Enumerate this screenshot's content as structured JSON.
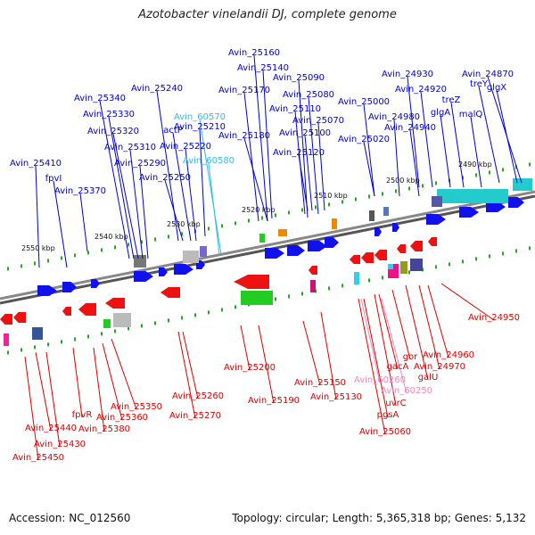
{
  "title": "Azotobacter vinelandii DJ, complete genome",
  "footer": {
    "accession": "Accession: NC_012560",
    "summary": "Topology: circular; Length: 5,365,318 bp; Genes: 5,132"
  },
  "colors": {
    "plus_label": "#0000cc",
    "minus_label": "#dd0000",
    "rna_plus_label": "#33bbee",
    "rna_minus_label": "#ee88bb",
    "backbone": "#888888",
    "tick": "#22aa22"
  },
  "scale_labels": [
    "2550 kbp",
    "2540 kbp",
    "2530 kbp",
    "2520 kbp",
    "2510 kbp",
    "2500 kbp",
    "2490 kbp"
  ],
  "plus_labels": [
    "Avin_25410",
    "fpvI",
    "Avin_25370",
    "Avin_25340",
    "Avin_25330",
    "Avin_25320",
    "Avin_25310",
    "Avin_25290",
    "Avin_25240",
    "actP",
    "Avin_25250",
    "Avin_25220",
    "Avin_25210",
    "Avin_25160",
    "Avin_25140",
    "Avin_25170",
    "Avin_25180",
    "Avin_25090",
    "Avin_25080",
    "Avin_25110",
    "Avin_25070",
    "Avin_25100",
    "Avin_25120",
    "Avin_25000",
    "Avin_25020",
    "Avin_24980",
    "Avin_24940",
    "Avin_24930",
    "Avin_24920",
    "treZ",
    "glgA",
    "malQ",
    "Avin_24870",
    "treY",
    "glgX"
  ],
  "rna_plus_labels": [
    "Avin_60570",
    "Avin_60580"
  ],
  "minus_labels": [
    "Avin_25450",
    "Avin_25440",
    "Avin_25430",
    "fpvR",
    "Avin_25380",
    "Avin_25360",
    "Avin_25350",
    "Avin_25270",
    "Avin_25260",
    "Avin_25200",
    "Avin_25190",
    "Avin_25150",
    "Avin_25130",
    "Avin_25060",
    "pgsA",
    "uvrC",
    "gacA",
    "gor",
    "galU",
    "Avin_24970",
    "Avin_24960",
    "Avin_24950"
  ],
  "rna_minus_labels": [
    "Avin_60260",
    "Avin_60250"
  ]
}
